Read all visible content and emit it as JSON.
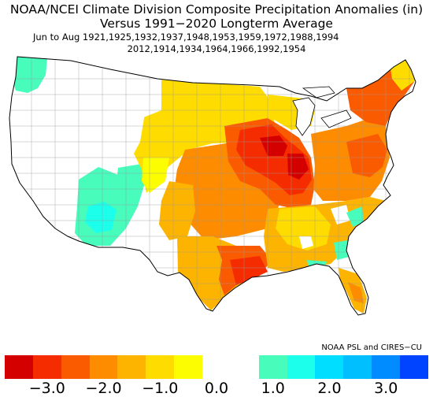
{
  "title_line1": "NOAA/NCEI Climate Division Composite Precipitation Anomalies (in)",
  "title_line2": "Versus 1991−2020 Longterm Average",
  "subtitle_line1": "Jun to Aug   1921,1925,1932,1937,1948,1953,1959,1972,1988,1994",
  "subtitle_line2": "2012,1914,1934,1964,1966,1992,1954",
  "credit": "NOAA PSL and CIRES−CU",
  "legend": {
    "colors": [
      "#d40000",
      "#f52c00",
      "#fb5b00",
      "#fd8c00",
      "#fdb400",
      "#fedc00",
      "#fbfd00",
      "#ffffff",
      "#ffffff",
      "#48fcbc",
      "#1cffea",
      "#00deff",
      "#00bfff",
      "#008cff",
      "#0044ff"
    ],
    "tick_labels": [
      "−3.0",
      "−2.0",
      "−1.0",
      "0.0",
      "1.0",
      "2.0",
      "3.0"
    ],
    "tick_values": [
      -3,
      -2,
      -1,
      0,
      1,
      2,
      3
    ],
    "range": [
      -3.75,
      3.75
    ],
    "bin_width": 0.5
  },
  "regions": [
    {
      "name": "Pacific Northwest coast",
      "class": "+0.5 to +1.0",
      "color": "#48fcbc"
    },
    {
      "name": "Arizona/New Mexico",
      "class": "+0.5 to +1.5",
      "color": "#1cffea"
    },
    {
      "name": "Colorado Rockies",
      "class": "+0.5 to +1.0",
      "color": "#48fcbc"
    },
    {
      "name": "Northern Plains",
      "class": "-0.5 to -1.5",
      "color": "#fedc00"
    },
    {
      "name": "Central Plains",
      "class": "-1.0 to -2.0",
      "color": "#fd8c00"
    },
    {
      "name": "Corn Belt (IA/IL/IN)",
      "class": "-2.5 to -3.0",
      "color": "#f52c00"
    },
    {
      "name": "Ohio Valley",
      "class": "-1.5 to -2.5",
      "color": "#fb5b00"
    },
    {
      "name": "East Texas/Louisiana",
      "class": "-2.5 to -3.0",
      "color": "#f52c00"
    },
    {
      "name": "Southeast",
      "class": "-0.5 to -1.5",
      "color": "#fdb400"
    },
    {
      "name": "Northeast",
      "class": "-1.0 to -2.0",
      "color": "#fb5b00"
    },
    {
      "name": "Carolinas coast",
      "class": "+0.5 to +1.0",
      "color": "#48fcbc"
    },
    {
      "name": "Florida",
      "class": "-1.0 to -1.5",
      "color": "#fdb400"
    }
  ]
}
